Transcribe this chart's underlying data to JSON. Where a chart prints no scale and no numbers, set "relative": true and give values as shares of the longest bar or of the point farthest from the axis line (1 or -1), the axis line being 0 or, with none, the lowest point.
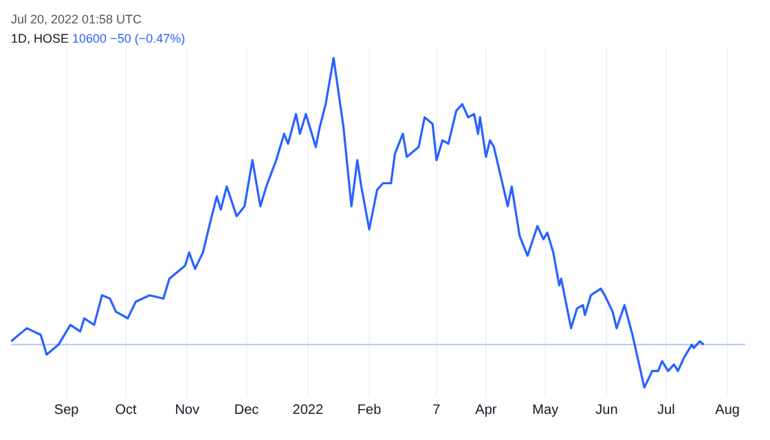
{
  "chart_data": {
    "type": "line",
    "title": "1D, HOSE",
    "subtitle": "10600 −50 (−0.47%)",
    "annotations": [
      "Jul 20, 2022 01:58 UTC"
    ],
    "relative": true,
    "grid": "x",
    "legend": false,
    "marker": "none",
    "xlim": [
      "2021-08-04",
      "2022-08-10"
    ],
    "xticks": [
      {
        "value": "2021-09-01",
        "label": "Sep"
      },
      {
        "value": "2021-10-01",
        "label": "Oct"
      },
      {
        "value": "2021-11-01",
        "label": "Nov"
      },
      {
        "value": "2021-12-01",
        "label": "Dec"
      },
      {
        "value": "2022-01-01",
        "label": "2022"
      },
      {
        "value": "2022-02-01",
        "label": "Feb"
      },
      {
        "value": "2022-03-07",
        "label": "7"
      },
      {
        "value": "2022-04-01",
        "label": "Apr"
      },
      {
        "value": "2022-05-01",
        "label": "May"
      },
      {
        "value": "2022-06-01",
        "label": "Jun"
      },
      {
        "value": "2022-07-01",
        "label": "Jul"
      },
      {
        "value": "2022-08-01",
        "label": "Aug"
      }
    ],
    "ref_lines": [
      {
        "axis": "y",
        "value": 0.13,
        "color": "#b3c7f7"
      }
    ],
    "series": [
      {
        "color": "#2962ff",
        "x": [
          "2021-08-04",
          "2021-08-12",
          "2021-08-19",
          "2021-08-22",
          "2021-08-28",
          "2021-09-03",
          "2021-09-08",
          "2021-09-10",
          "2021-09-15",
          "2021-09-19",
          "2021-09-23",
          "2021-09-26",
          "2021-10-02",
          "2021-10-06",
          "2021-10-13",
          "2021-10-20",
          "2021-10-23",
          "2021-10-31",
          "2021-11-02",
          "2021-11-05",
          "2021-11-09",
          "2021-11-13",
          "2021-11-16",
          "2021-11-18",
          "2021-11-21",
          "2021-11-26",
          "2021-11-30",
          "2021-12-04",
          "2021-12-08",
          "2021-12-11",
          "2021-12-16",
          "2021-12-20",
          "2021-12-22",
          "2021-12-26",
          "2021-12-28",
          "2021-12-31",
          "2022-01-05",
          "2022-01-07",
          "2022-01-10",
          "2022-01-14",
          "2022-01-19",
          "2022-01-23",
          "2022-01-26",
          "2022-01-28",
          "2022-02-01",
          "2022-02-05",
          "2022-02-08",
          "2022-02-12",
          "2022-02-14",
          "2022-02-18",
          "2022-02-20",
          "2022-02-26",
          "2022-03-01",
          "2022-03-05",
          "2022-03-07",
          "2022-03-10",
          "2022-03-13",
          "2022-03-17",
          "2022-03-20",
          "2022-03-23",
          "2022-03-26",
          "2022-03-28",
          "2022-03-29",
          "2022-04-01",
          "2022-04-03",
          "2022-04-05",
          "2022-04-12",
          "2022-04-14",
          "2022-04-18",
          "2022-04-22",
          "2022-04-27",
          "2022-04-30",
          "2022-05-02",
          "2022-05-05",
          "2022-05-08",
          "2022-05-09",
          "2022-05-14",
          "2022-05-17",
          "2022-05-20",
          "2022-05-21",
          "2022-05-24",
          "2022-05-29",
          "2022-05-31",
          "2022-06-04",
          "2022-06-06",
          "2022-06-10",
          "2022-06-14",
          "2022-06-20",
          "2022-06-24",
          "2022-06-27",
          "2022-06-29",
          "2022-07-02",
          "2022-07-05",
          "2022-07-07",
          "2022-07-10",
          "2022-07-14",
          "2022-07-15",
          "2022-07-18",
          "2022-07-20"
        ],
        "values": [
          0.14,
          0.18,
          0.16,
          0.1,
          0.13,
          0.19,
          0.17,
          0.21,
          0.19,
          0.28,
          0.27,
          0.23,
          0.21,
          0.26,
          0.28,
          0.27,
          0.33,
          0.37,
          0.41,
          0.36,
          0.41,
          0.51,
          0.58,
          0.54,
          0.61,
          0.52,
          0.55,
          0.69,
          0.55,
          0.61,
          0.69,
          0.77,
          0.74,
          0.83,
          0.77,
          0.83,
          0.73,
          0.79,
          0.86,
          1,
          0.79,
          0.55,
          0.69,
          0.61,
          0.48,
          0.6,
          0.62,
          0.62,
          0.71,
          0.77,
          0.7,
          0.73,
          0.82,
          0.8,
          0.69,
          0.75,
          0.74,
          0.84,
          0.86,
          0.82,
          0.83,
          0.77,
          0.82,
          0.7,
          0.75,
          0.73,
          0.55,
          0.61,
          0.46,
          0.4,
          0.49,
          0.45,
          0.47,
          0.41,
          0.31,
          0.33,
          0.18,
          0.24,
          0.25,
          0.22,
          0.28,
          0.3,
          0.28,
          0.23,
          0.18,
          0.25,
          0.16,
          0,
          0.05,
          0.05,
          0.08,
          0.05,
          0.07,
          0.05,
          0.09,
          0.13,
          0.12,
          0.14,
          0.13
        ]
      }
    ]
  }
}
